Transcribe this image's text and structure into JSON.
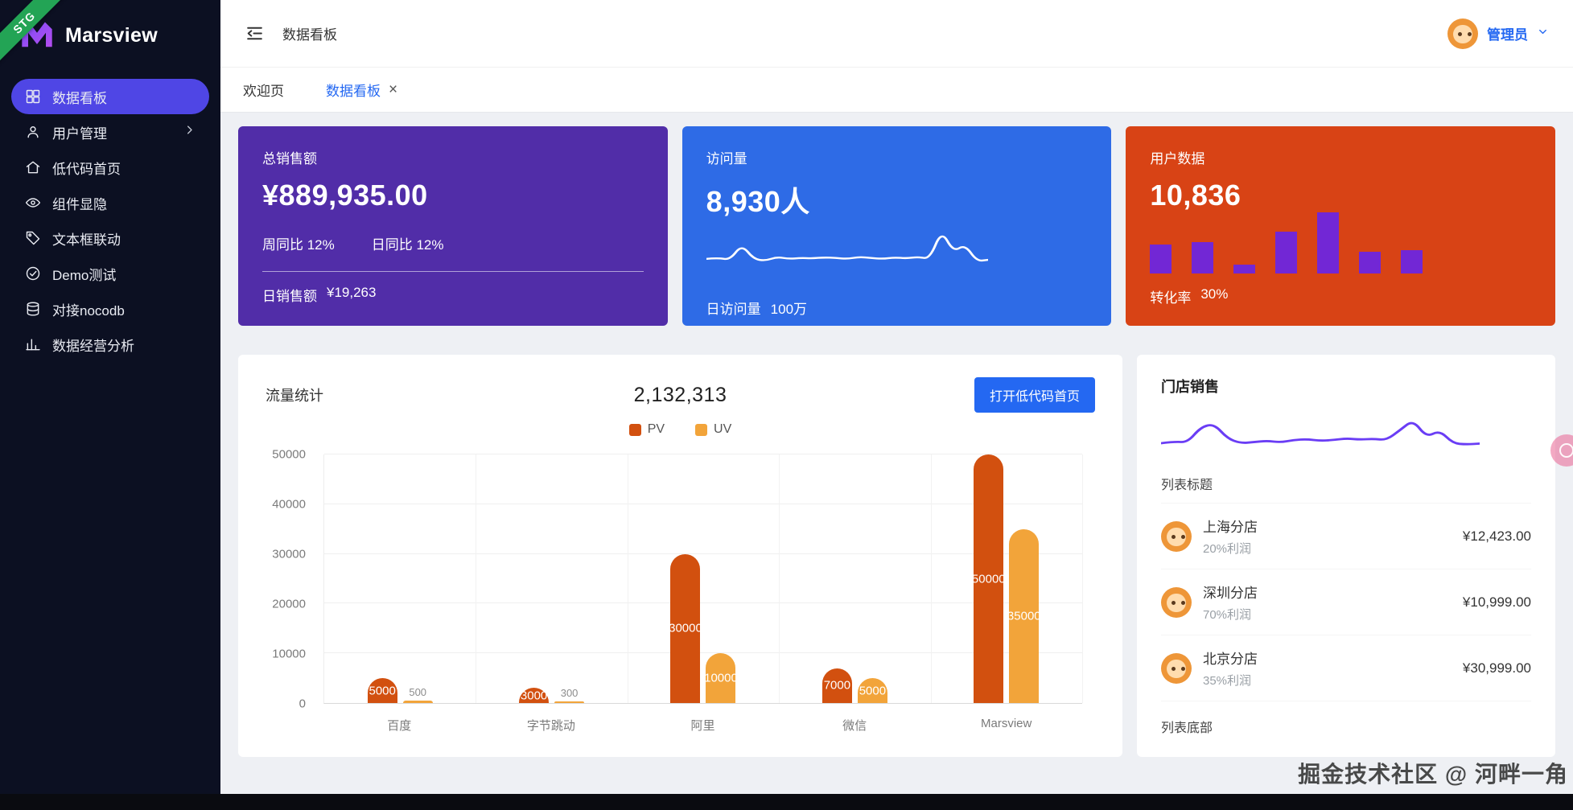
{
  "brand": {
    "name": "Marsview",
    "ribbon": "STG"
  },
  "header": {
    "breadcrumb": "数据看板",
    "user_name": "管理员"
  },
  "sidebar": {
    "items": [
      {
        "key": "dashboard",
        "label": "数据看板",
        "icon": "dashboard-icon",
        "active": true,
        "has_children": false
      },
      {
        "key": "user-management",
        "label": "用户管理",
        "icon": "users-icon",
        "active": false,
        "has_children": true
      },
      {
        "key": "lowcode-home",
        "label": "低代码首页",
        "icon": "home-icon",
        "active": false,
        "has_children": false
      },
      {
        "key": "component-visibility",
        "label": "组件显隐",
        "icon": "eye-icon",
        "active": false,
        "has_children": false
      },
      {
        "key": "textbox-link",
        "label": "文本框联动",
        "icon": "tag-icon",
        "active": false,
        "has_children": false
      },
      {
        "key": "demo-test",
        "label": "Demo测试",
        "icon": "demo-icon",
        "active": false,
        "has_children": false
      },
      {
        "key": "nocodb",
        "label": "对接nocodb",
        "icon": "database-icon",
        "active": false,
        "has_children": false
      },
      {
        "key": "data-analysis",
        "label": "数据经营分析",
        "icon": "analytics-icon",
        "active": false,
        "has_children": false
      }
    ]
  },
  "tabs": {
    "items": [
      {
        "key": "welcome",
        "label": "欢迎页",
        "active": false,
        "closable": false
      },
      {
        "key": "dashboard",
        "label": "数据看板",
        "active": true,
        "closable": true
      }
    ]
  },
  "stat_cards": [
    {
      "key": "total-sales",
      "title": "总销售额",
      "value": "¥889,935.00",
      "metas": [
        "周同比 12%",
        "日同比 12%"
      ],
      "chart": null,
      "footer_label": "日销售额",
      "footer_value": "¥19,263",
      "bg": "#512da8"
    },
    {
      "key": "visits",
      "title": "访问量",
      "value": "8,930人",
      "metas": [],
      "chart": "visits-spark",
      "footer_label": "日访问量",
      "footer_value": "100万",
      "bg": "#2e6be6"
    },
    {
      "key": "user-data",
      "title": "用户数据",
      "value": "10,836",
      "metas": [],
      "chart": "users-minibars",
      "footer_label": "转化率",
      "footer_value": "30%",
      "bg": "#d84315"
    }
  ],
  "traffic_card": {
    "title": "流量统计",
    "total": "2,132,313",
    "button_label": "打开低代码首页"
  },
  "store_card": {
    "title": "门店销售",
    "list_header": "列表标题",
    "list_footer": "列表底部",
    "items": [
      {
        "name": "上海分店",
        "profit": "20%利润",
        "amount": "¥12,423.00"
      },
      {
        "name": "深圳分店",
        "profit": "70%利润",
        "amount": "¥10,999.00"
      },
      {
        "name": "北京分店",
        "profit": "35%利润",
        "amount": "¥30,999.00"
      }
    ]
  },
  "watermark": "掘金技术社区 @ 河畔一角",
  "colors": {
    "accent_blue": "#2468f2",
    "sidebar_active": "#4f46e5",
    "ribbon_green": "#23a455",
    "card_purple": "#512da8",
    "card_blue": "#2e6be6",
    "card_orange": "#d84315",
    "pv_bar": "#d2500f",
    "uv_bar": "#f2a43a",
    "mini_bar_purple": "#7227d5",
    "store_spark_purple": "#6a3df5"
  },
  "chart_data": [
    {
      "id": "traffic-bars",
      "type": "bar",
      "title": "流量统计",
      "categories": [
        "百度",
        "字节跳动",
        "阿里",
        "微信",
        "Marsview"
      ],
      "series": [
        {
          "name": "PV",
          "color": "#d2500f",
          "values": [
            5000,
            3000,
            30000,
            7000,
            50000
          ]
        },
        {
          "name": "UV",
          "color": "#f2a43a",
          "values": [
            500,
            300,
            10000,
            5000,
            35000
          ]
        }
      ],
      "xlabel": "",
      "ylabel": "",
      "ylim": [
        0,
        50000
      ],
      "ytick_step": 10000,
      "grid": true,
      "legend_position": "top"
    },
    {
      "id": "visits-spark",
      "type": "line",
      "color": "#ffffff",
      "values": [
        30,
        32,
        28,
        60,
        30,
        26,
        34,
        30,
        32,
        31,
        33,
        32,
        30,
        34,
        32,
        30,
        33,
        31,
        34,
        30,
        90,
        45,
        60,
        25,
        28
      ]
    },
    {
      "id": "users-minibars",
      "type": "bar",
      "color": "#7227d5",
      "values": [
        48,
        51,
        14,
        69,
        100,
        35,
        38
      ]
    },
    {
      "id": "store-spark",
      "type": "line",
      "color": "#6a3df5",
      "values": [
        30,
        34,
        32,
        70,
        78,
        42,
        30,
        33,
        36,
        32,
        38,
        40,
        36,
        38,
        42,
        39,
        41,
        38,
        62,
        88,
        45,
        62,
        30,
        27,
        29
      ]
    }
  ]
}
